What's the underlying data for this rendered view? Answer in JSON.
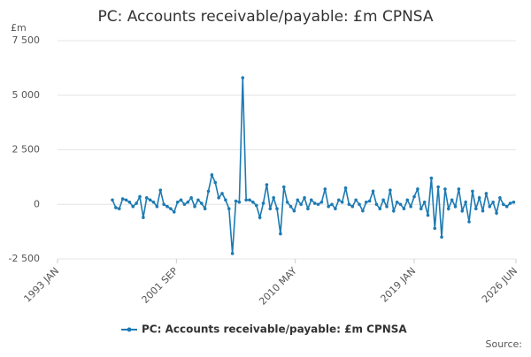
{
  "chart_data": {
    "type": "line",
    "title": "PC: Accounts receivable/payable: £m CPNSA",
    "y_unit": "£m",
    "source": "Source:",
    "x": [
      "1997-01",
      "1997-04",
      "1997-07",
      "1997-10",
      "1998-01",
      "1998-04",
      "1998-07",
      "1998-10",
      "1999-01",
      "1999-04",
      "1999-07",
      "1999-10",
      "2000-01",
      "2000-04",
      "2000-07",
      "2000-10",
      "2001-01",
      "2001-04",
      "2001-07",
      "2001-10",
      "2002-01",
      "2002-04",
      "2002-07",
      "2002-10",
      "2003-01",
      "2003-04",
      "2003-07",
      "2003-10",
      "2004-01",
      "2004-04",
      "2004-07",
      "2004-10",
      "2005-01",
      "2005-04",
      "2005-07",
      "2005-10",
      "2006-01",
      "2006-04",
      "2006-07",
      "2006-10",
      "2007-01",
      "2007-04",
      "2007-07",
      "2007-10",
      "2008-01",
      "2008-04",
      "2008-07",
      "2008-10",
      "2009-01",
      "2009-04",
      "2009-07",
      "2009-10",
      "2010-01",
      "2010-04",
      "2010-07",
      "2010-10",
      "2011-01",
      "2011-04",
      "2011-07",
      "2011-10",
      "2012-01",
      "2012-04",
      "2012-07",
      "2012-10",
      "2013-01",
      "2013-04",
      "2013-07",
      "2013-10",
      "2014-01",
      "2014-04",
      "2014-07",
      "2014-10",
      "2015-01",
      "2015-04",
      "2015-07",
      "2015-10",
      "2016-01",
      "2016-04",
      "2016-07",
      "2016-10",
      "2017-01",
      "2017-04",
      "2017-07",
      "2017-10",
      "2018-01",
      "2018-04",
      "2018-07",
      "2018-10",
      "2019-01",
      "2019-04",
      "2019-07",
      "2019-10",
      "2020-01",
      "2020-04",
      "2020-07",
      "2020-10",
      "2021-01",
      "2021-04",
      "2021-07",
      "2021-10",
      "2022-01",
      "2022-04",
      "2022-07",
      "2022-10",
      "2023-01",
      "2023-04",
      "2023-07",
      "2023-10",
      "2024-01",
      "2024-04",
      "2024-07",
      "2024-10",
      "2025-01",
      "2025-04",
      "2025-07",
      "2025-10",
      "2026-01",
      "2026-04"
    ],
    "series": [
      {
        "name": "PC: Accounts receivable/payable: £m CPNSA",
        "color": "#1d7ab3",
        "values": [
          200,
          -150,
          -200,
          250,
          200,
          100,
          -100,
          50,
          350,
          -600,
          300,
          200,
          100,
          -100,
          650,
          0,
          -100,
          -200,
          -350,
          100,
          200,
          0,
          100,
          300,
          -100,
          200,
          50,
          -200,
          600,
          1350,
          1000,
          300,
          500,
          200,
          -200,
          -2250,
          150,
          100,
          5800,
          200,
          200,
          100,
          -50,
          -600,
          50,
          900,
          -200,
          300,
          -200,
          -1350,
          800,
          100,
          -100,
          -300,
          200,
          0,
          300,
          -200,
          200,
          50,
          0,
          100,
          700,
          -100,
          0,
          -200,
          200,
          100,
          750,
          0,
          -100,
          200,
          0,
          -300,
          100,
          150,
          600,
          0,
          -200,
          200,
          -100,
          650,
          -300,
          100,
          0,
          -200,
          200,
          -100,
          350,
          700,
          -200,
          100,
          -500,
          1200,
          -1100,
          800,
          -1500,
          700,
          -200,
          200,
          -100,
          700,
          -300,
          100,
          -800,
          600,
          -200,
          300,
          -300,
          500,
          -100,
          100,
          -400,
          300,
          0,
          -100,
          50,
          100
        ]
      }
    ],
    "xlim": [
      "1993-01",
      "2026-06"
    ],
    "xticks": [
      {
        "value": "1993-01",
        "label": "1993 JAN"
      },
      {
        "value": "2001-09",
        "label": "2001 SEP"
      },
      {
        "value": "2010-05",
        "label": "2010 MAY"
      },
      {
        "value": "2019-01",
        "label": "2019 JAN"
      },
      {
        "value": "2026-06",
        "label": "2026 JUN"
      }
    ],
    "ylim": [
      -2500,
      7500
    ],
    "yticks": [
      {
        "value": -2500,
        "label": "-2 500"
      },
      0,
      {
        "value": 2500,
        "label": "2 500"
      },
      {
        "value": 5000,
        "label": "5 000"
      },
      {
        "value": 7500,
        "label": "7 500"
      }
    ],
    "grid": true
  }
}
